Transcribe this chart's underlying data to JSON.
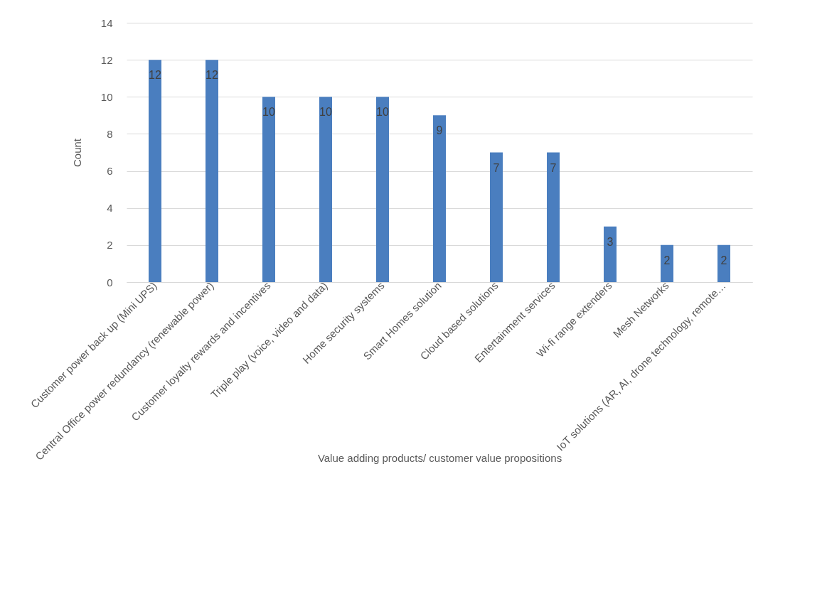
{
  "chart_data": {
    "type": "bar",
    "categories": [
      "Customer power back up (Mini UPS)",
      "Central Office power redundancy (renewable power)",
      "Customer loyalty rewards and incentives",
      "Triple play (voice, video and data)",
      "Home security systems",
      "Smart Homes solution",
      "Cloud based solutions",
      "Entertainment services",
      "Wi-fi range extenders",
      "Mesh Networks",
      "IoT solutions (AR, AI, drone technology, remote…"
    ],
    "values": [
      12,
      12,
      10,
      10,
      10,
      9,
      7,
      7,
      3,
      2,
      2
    ],
    "color": "#4a7ebf",
    "xlabel": "Value adding products/ customer value propositions",
    "ylabel": "Count",
    "ylim": [
      0,
      14
    ],
    "yticks": [
      0,
      2,
      4,
      6,
      8,
      10,
      12,
      14
    ],
    "grid": "y",
    "data_labels": true
  }
}
